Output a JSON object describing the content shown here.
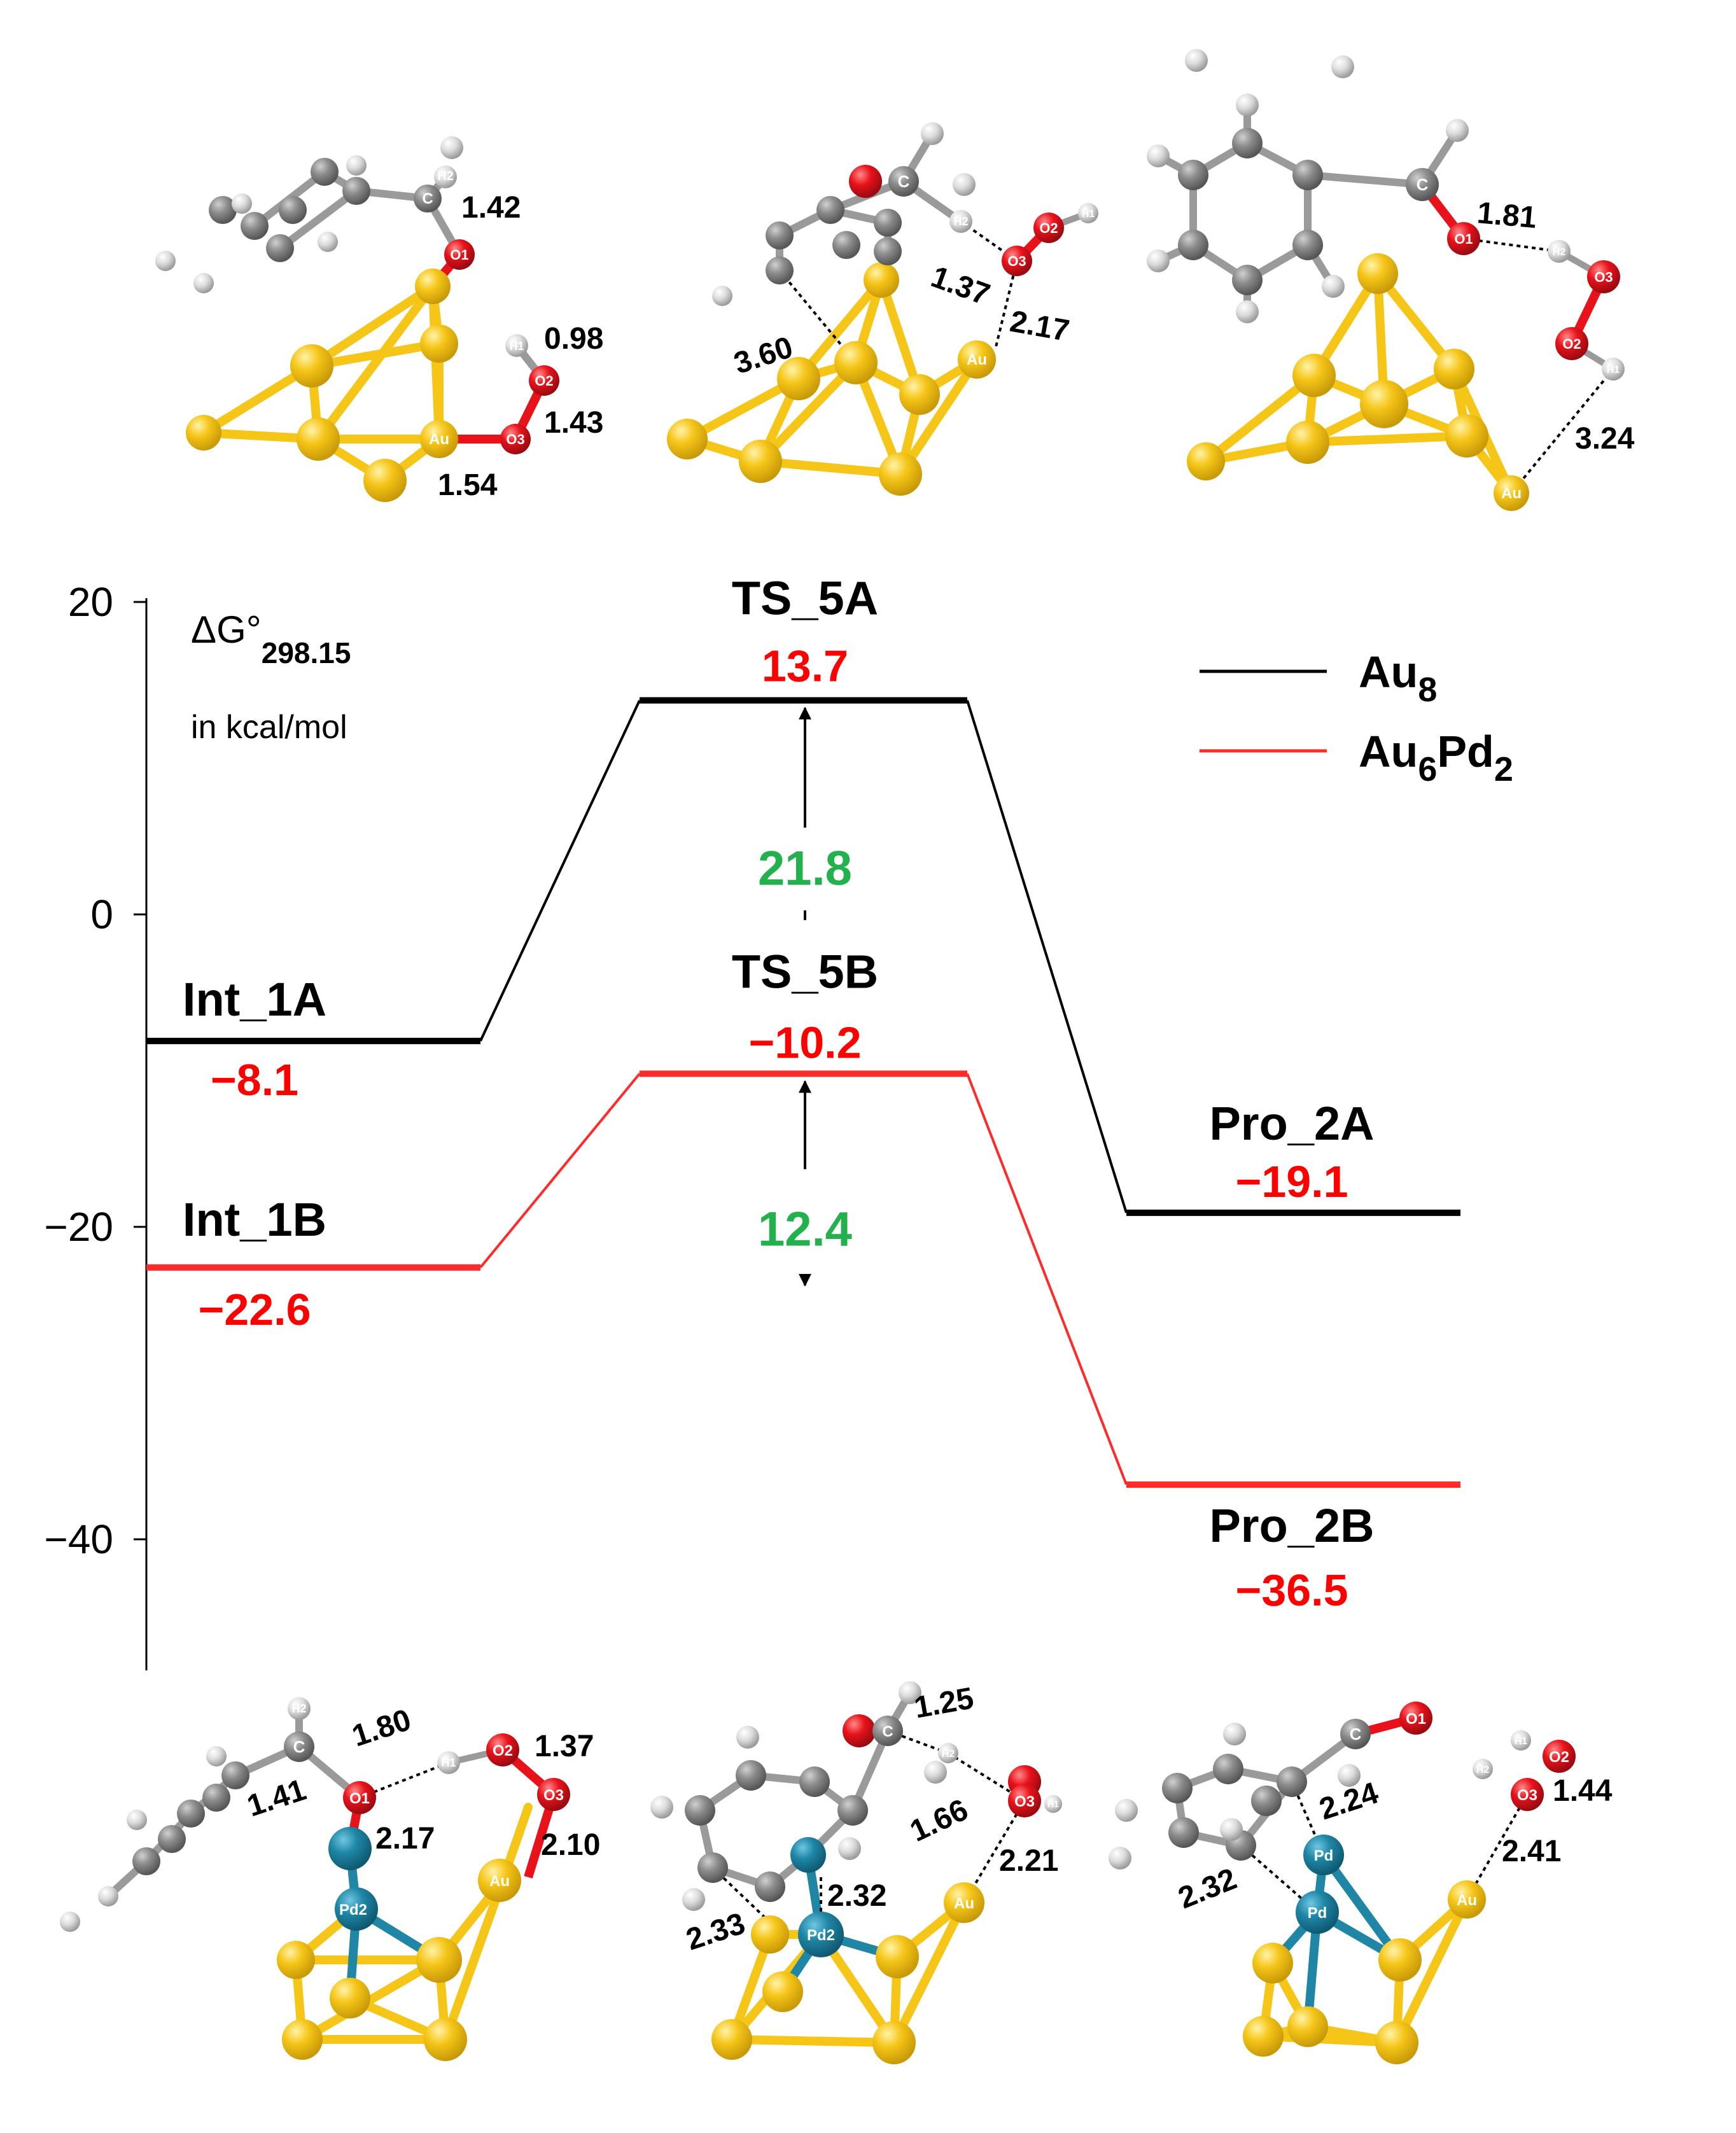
{
  "chart_data": {
    "type": "energy-profile",
    "title": "",
    "ylabel_main": "ΔG°",
    "ylabel_sub": "298.15",
    "units": "in kcal/mol",
    "ylim": [
      -48,
      20
    ],
    "yticks": [
      20,
      0,
      -20,
      -40
    ],
    "ytick_labels": [
      "20",
      "0",
      "−20",
      "−40"
    ],
    "legend": [
      {
        "name": "Au",
        "sub": "8",
        "color": "#000000"
      },
      {
        "name": "Au",
        "sub": "6",
        "name2": "Pd",
        "sub2": "2",
        "color": "#ff2a2a"
      }
    ],
    "series": [
      {
        "name": "Au8",
        "color": "#000000",
        "points": [
          {
            "stage": 0,
            "label": "Int_1A",
            "value": -8.1,
            "value_label": "−8.1"
          },
          {
            "stage": 1,
            "label": "TS_5A",
            "value": 13.7,
            "value_label": "13.7"
          },
          {
            "stage": 2,
            "label": "Pro_2A",
            "value": -19.1,
            "value_label": "−19.1"
          }
        ]
      },
      {
        "name": "Au6Pd2",
        "color": "#ff2a2a",
        "points": [
          {
            "stage": 0,
            "label": "Int_1B",
            "value": -22.6,
            "value_label": "−22.6"
          },
          {
            "stage": 1,
            "label": "TS_5B",
            "value": -10.2,
            "value_label": "−10.2"
          },
          {
            "stage": 2,
            "label": "Pro_2B",
            "value": -36.5,
            "value_label": "−36.5"
          }
        ]
      }
    ],
    "barriers": [
      {
        "value": 21.8,
        "label": "21.8",
        "from": -8.1,
        "to": 13.7,
        "color": "#22b14c"
      },
      {
        "value": 12.4,
        "label": "12.4",
        "from": -22.6,
        "to": -10.2,
        "color": "#22b14c"
      }
    ]
  },
  "structures": {
    "top_left": {
      "atoms": [
        "H2",
        "C",
        "O1",
        "H1",
        "O2",
        "Au",
        "O3"
      ],
      "distances": [
        "1.42",
        "0.98",
        "1.43",
        "1.54"
      ]
    },
    "top_mid": {
      "atoms": [
        "C",
        "H2",
        "O2",
        "H1",
        "O3",
        "Au"
      ],
      "distances": [
        "1.37",
        "2.17",
        "3.60"
      ]
    },
    "top_right": {
      "atoms": [
        "C",
        "O1",
        "H2",
        "O3",
        "O2",
        "H1",
        "Au"
      ],
      "distances": [
        "1.81",
        "3.24"
      ]
    },
    "bottom_left": {
      "atoms": [
        "H2",
        "C",
        "O1",
        "H1",
        "O2",
        "O3",
        "Pd2",
        "Au"
      ],
      "distances": [
        "1.80",
        "1.37",
        "1.41",
        "2.17",
        "2.10"
      ]
    },
    "bottom_mid": {
      "atoms": [
        "C",
        "H2",
        "O3",
        "H1",
        "Pd2",
        "Au"
      ],
      "distances": [
        "1.25",
        "1.66",
        "2.21",
        "2.33",
        "2.32"
      ]
    },
    "bottom_right": {
      "atoms": [
        "C",
        "O1",
        "H1",
        "O2",
        "H2",
        "O3",
        "Pd",
        "Pd",
        "Au"
      ],
      "distances": [
        "2.24",
        "1.44",
        "2.41",
        "2.32"
      ]
    }
  },
  "colors": {
    "gold": "#f5c518",
    "oxygen": "#e8121b",
    "carbon": "#8c8c8c",
    "hydrogen": "#d8d8d8",
    "palladium": "#1f86a6",
    "barrier": "#22b14c"
  }
}
